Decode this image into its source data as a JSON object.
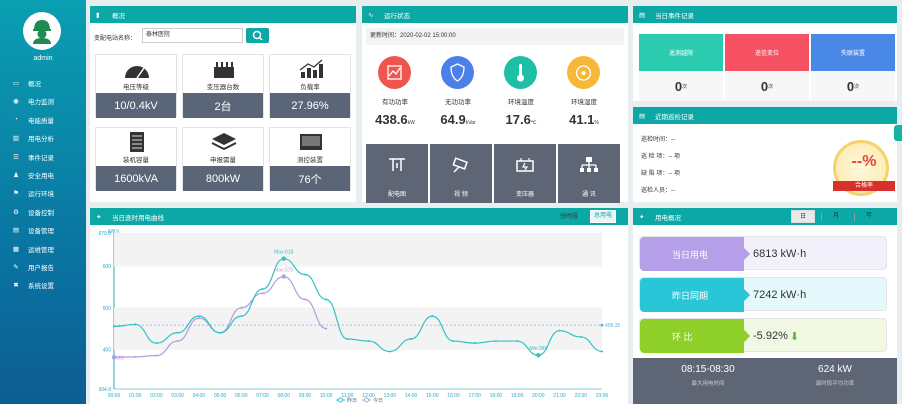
{
  "sidebar": {
    "user": "admin",
    "items": [
      {
        "label": "概况",
        "icon": "monitor-icon"
      },
      {
        "label": "电力监测",
        "icon": "globe-icon"
      },
      {
        "label": "电能质量",
        "icon": "gauge-icon"
      },
      {
        "label": "用电分析",
        "icon": "bar-chart-icon"
      },
      {
        "label": "事件记录",
        "icon": "list-icon"
      },
      {
        "label": "安全用电",
        "icon": "people-icon"
      },
      {
        "label": "运行环境",
        "icon": "flag-icon"
      },
      {
        "label": "设备控制",
        "icon": "gear-icon"
      },
      {
        "label": "设备管理",
        "icon": "doc-icon"
      },
      {
        "label": "运维管理",
        "icon": "server-icon"
      },
      {
        "label": "用户报告",
        "icon": "edit-icon"
      },
      {
        "label": "系统设置",
        "icon": "tools-icon"
      }
    ]
  },
  "overview": {
    "title": "概况",
    "station_label": "变配电站名称：",
    "station_value": "泰林医院",
    "cards": [
      {
        "label": "电压等级",
        "value": "10/0.4kV"
      },
      {
        "label": "变压器台数",
        "value": "2台"
      },
      {
        "label": "负载率",
        "value": "27.96%"
      },
      {
        "label": "装机容量",
        "value": "1600kVA"
      },
      {
        "label": "申报需量",
        "value": "800kW"
      },
      {
        "label": "测控装置",
        "value": "76个"
      }
    ]
  },
  "runstate": {
    "title": "运行状态",
    "update_label": "更新时间：",
    "update_time": "2020-02-02 15:00:00",
    "metrics": [
      {
        "label": "有功功率",
        "value": "438.6",
        "unit": "kW",
        "color": "#f0544f"
      },
      {
        "label": "无功功率",
        "value": "64.9",
        "unit": "kVar",
        "color": "#4a80e8"
      },
      {
        "label": "环境温度",
        "value": "17.6",
        "unit": "℃",
        "color": "#1fbfa5"
      },
      {
        "label": "环境湿度",
        "value": "41.1",
        "unit": "%",
        "color": "#f5b83a"
      }
    ],
    "devices": [
      "配电图",
      "视 频",
      "变压器",
      "通 讯"
    ]
  },
  "events": {
    "title": "当日事件记录",
    "items": [
      {
        "label": "遥测越限",
        "count": "0",
        "unit": "次",
        "color": "#2bcbb0"
      },
      {
        "label": "遥信变位",
        "count": "0",
        "unit": "次",
        "color": "#f55162"
      },
      {
        "label": "失联装置",
        "count": "0",
        "unit": "次",
        "color": "#4a88e8"
      }
    ]
  },
  "patrol": {
    "title": "近期巡检记录",
    "rows": [
      "巡检时间：--",
      "巡 检 项：-- 项",
      "缺 陷 项：-- 项",
      "巡检人员：--"
    ],
    "gauge_value": "--%",
    "gauge_label": "合格率"
  },
  "load": {
    "title": "当日逐时用电曲线",
    "tabs": [
      "分时段",
      "总用电"
    ],
    "active_tab": "总用电"
  },
  "usage": {
    "title": "用电概况",
    "tabs": [
      "日",
      "月",
      "年"
    ],
    "items": [
      {
        "label": "当日用电",
        "value": "6813 kW·h",
        "color": "#b49fe8",
        "bg": "#f1f0fb"
      },
      {
        "label": "昨日同期",
        "value": "7242 kW·h",
        "color": "#2ac6d8",
        "bg": "#e5f8fb"
      },
      {
        "label": "环 比",
        "value": "-5.92%",
        "color": "#8fcf2a",
        "bg": "#f1f8e4"
      }
    ],
    "peak_time": "08:15-08:30",
    "peak_time_label": "最大用电时间",
    "avg_power": "624 kW",
    "avg_power_label": "最时段平均功率"
  },
  "chart_data": {
    "type": "line",
    "ylabel": "kW.h",
    "ylim": [
      304.8,
      679.8
    ],
    "yticks": [
      304.8,
      400,
      500,
      600,
      679.8
    ],
    "x": [
      "00:00",
      "01:00",
      "02:00",
      "03:00",
      "04:00",
      "05:00",
      "06:00",
      "07:00",
      "08:00",
      "09:00",
      "10:00",
      "11:00",
      "12:00",
      "13:00",
      "14:00",
      "15:00",
      "16:00",
      "17:00",
      "18:00",
      "19:00",
      "20:00",
      "21:00",
      "22:00",
      "23:00"
    ],
    "series": [
      {
        "name": "昨日",
        "color": "#2ec4c6",
        "values": [
          455,
          460,
          415,
          440,
          480,
          440,
          480,
          545,
          618,
          580,
          520,
          425,
          420,
          395,
          425,
          480,
          420,
          415,
          420,
          420,
          386,
          445,
          430,
          395
        ]
      },
      {
        "name": "今日",
        "color": "#b39ddb",
        "values": [
          381,
          382,
          385,
          420,
          475,
          440,
          500,
          535,
          575,
          520,
          450,
          null,
          null,
          null,
          null,
          null,
          null,
          null,
          null,
          null,
          null,
          null,
          null,
          null
        ]
      }
    ],
    "annotations": [
      "Max:618",
      "Max:575",
      "Min:386",
      "381",
      "458.35"
    ],
    "avg": 458.35
  }
}
